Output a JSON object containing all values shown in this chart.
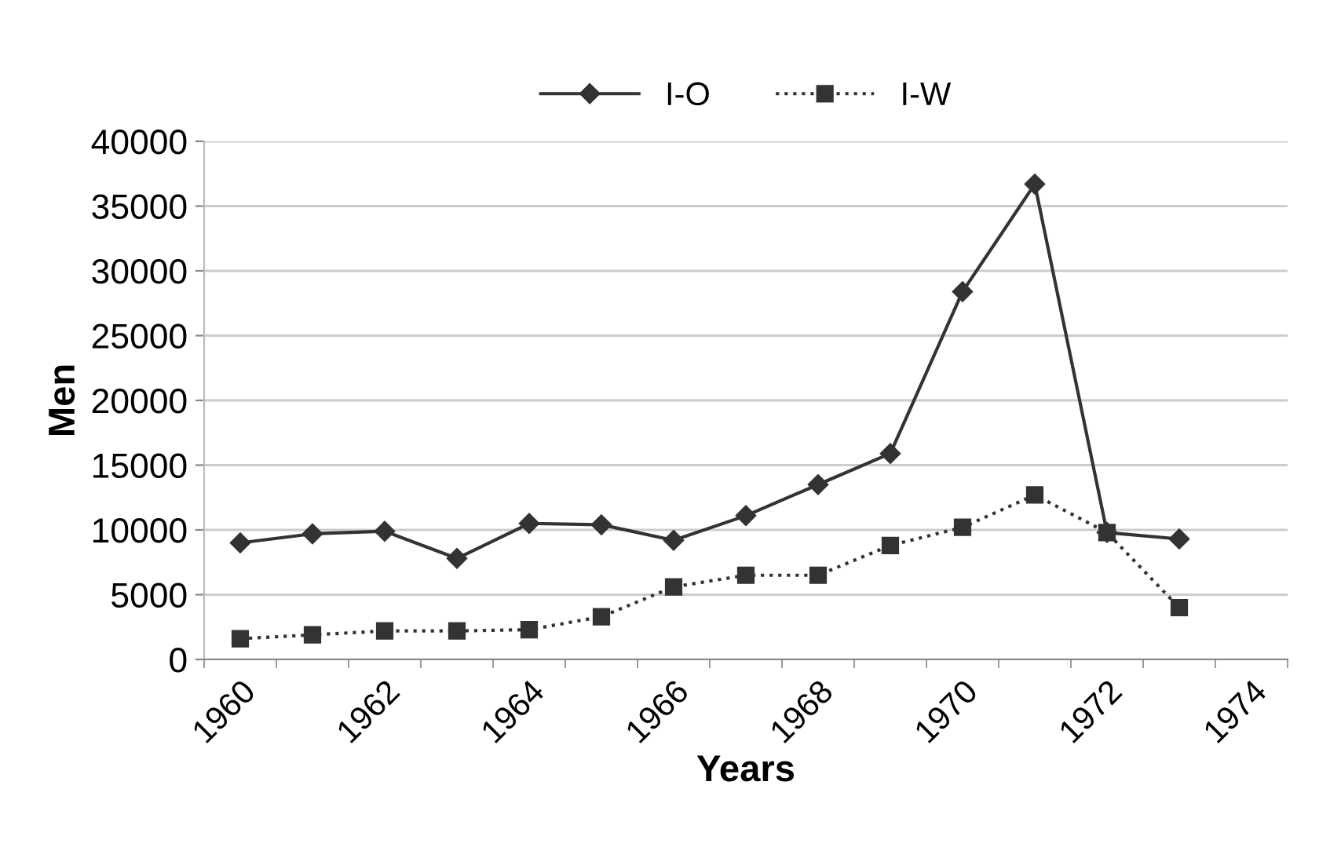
{
  "chart_data": {
    "type": "line",
    "xlabel": "Years",
    "ylabel": "Men",
    "categories": [
      "1960",
      null,
      "1962",
      null,
      "1964",
      null,
      "1966",
      null,
      "1968",
      null,
      "1970",
      null,
      "1972",
      null,
      "1974"
    ],
    "series": [
      {
        "name": "I-O",
        "color": "#333333",
        "marker": "diamond",
        "line_style": "solid",
        "values": [
          9000,
          9700,
          9900,
          7800,
          10500,
          10400,
          9200,
          11100,
          13500,
          15900,
          28400,
          36700,
          9800,
          9300,
          null
        ]
      },
      {
        "name": "I-W",
        "color": "#333333",
        "marker": "square",
        "line_style": "dotted",
        "values": [
          1600,
          1900,
          2200,
          2200,
          2300,
          3300,
          5600,
          6500,
          6500,
          8800,
          10200,
          12700,
          9800,
          4000,
          null
        ]
      }
    ],
    "ylim": [
      0,
      40000
    ],
    "yticks": [
      0,
      5000,
      10000,
      15000,
      20000,
      25000,
      30000,
      35000,
      40000
    ],
    "grid": "y",
    "legend": "top"
  }
}
